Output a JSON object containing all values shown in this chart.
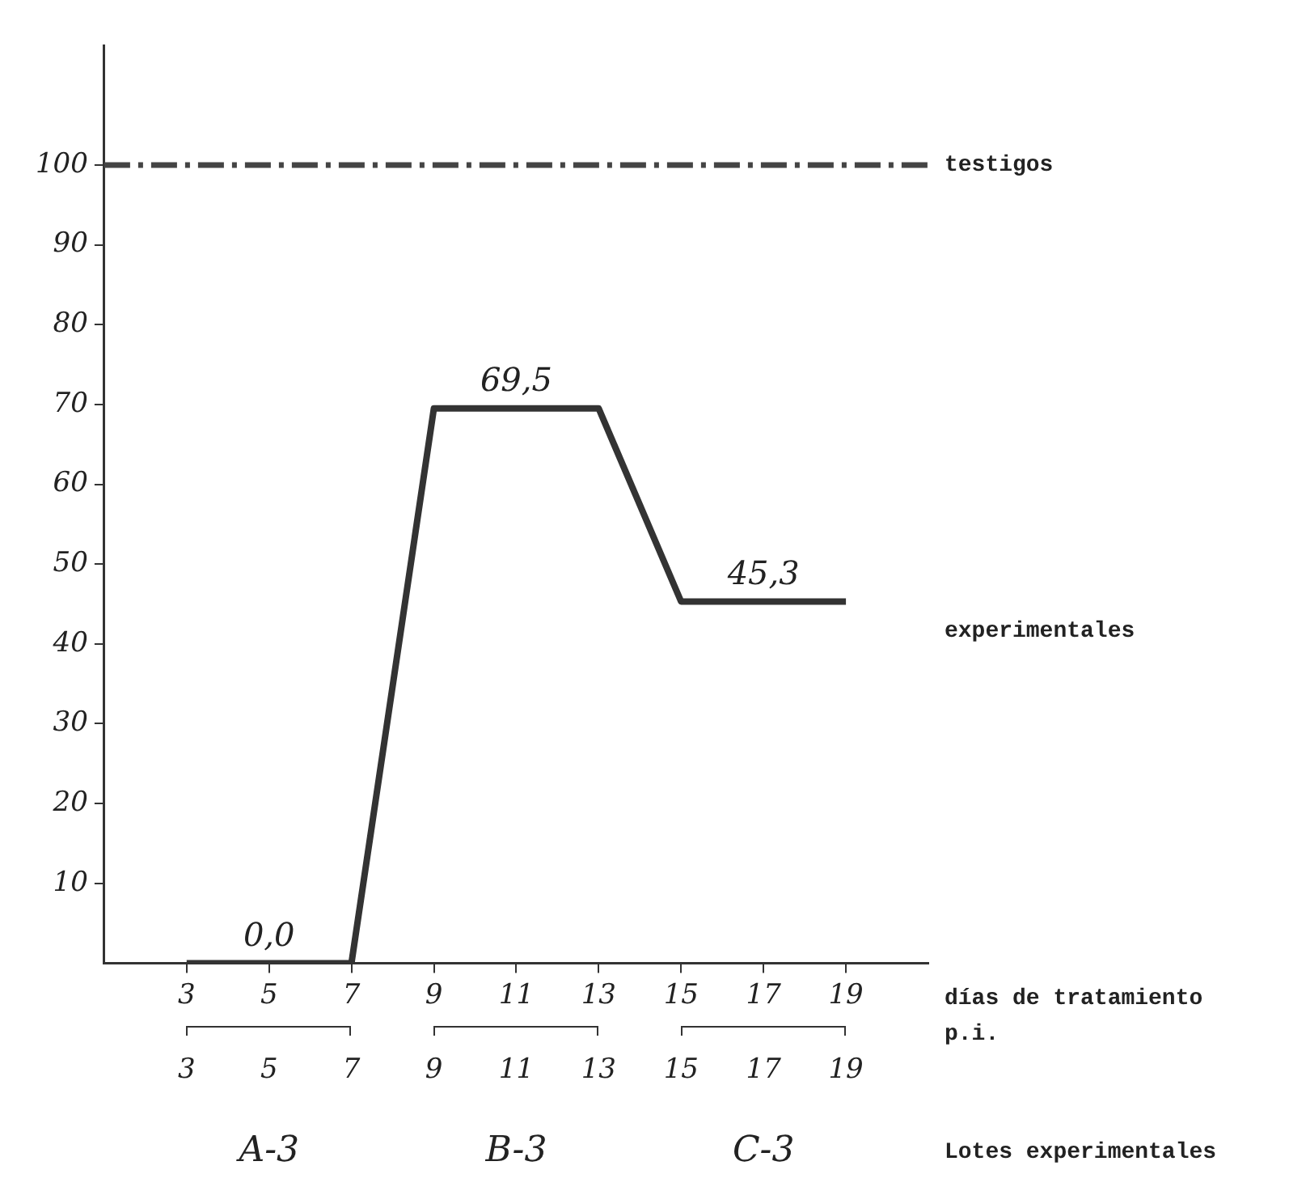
{
  "chart_data": {
    "type": "line",
    "xlabel": "días de tratamiento p.i.",
    "x2label": "Lotes experimentales",
    "x": [
      3,
      5,
      7,
      9,
      11,
      13,
      15,
      17,
      19
    ],
    "xlim": [
      1,
      21
    ],
    "xticks": [
      3,
      5,
      7,
      9,
      11,
      13,
      15,
      17,
      19
    ],
    "x2lim": [
      1,
      21
    ],
    "x2ticks": [
      3,
      5,
      7,
      9,
      11,
      13,
      15,
      17,
      19
    ],
    "ylim": [
      0,
      115
    ],
    "yticks": [
      10,
      20,
      30,
      40,
      50,
      60,
      70,
      80,
      90,
      100
    ],
    "series": [
      {
        "name": "experimentales",
        "color": "#333333",
        "values": [
          0,
          0,
          0,
          69.5,
          69.5,
          69.5,
          45.3,
          45.3,
          45.3
        ],
        "value_labels": [
          null,
          "0,0",
          null,
          null,
          "69,5",
          null,
          null,
          "45,3",
          null
        ]
      }
    ],
    "ref_lines": [
      {
        "axis": "y",
        "value": 100,
        "label": "testigos",
        "line_style": "dashed",
        "color": "#444444"
      }
    ],
    "annotations": [
      "A-3",
      "B-3",
      "C-3"
    ],
    "grid": false,
    "legend": false,
    "marker": "none",
    "line_style": "solid"
  }
}
